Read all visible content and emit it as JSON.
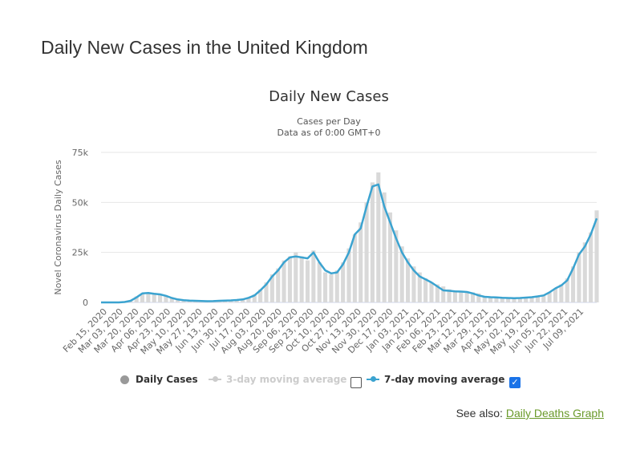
{
  "page": {
    "title": "Daily New Cases in the United Kingdom",
    "see_also_label": "See also:",
    "see_also_link": "Daily Deaths Graph"
  },
  "legend": {
    "daily_cases": "Daily Cases",
    "ma3": "3-day moving average",
    "ma7": "7-day moving average",
    "ma3_checked": false,
    "ma7_checked": true
  },
  "colors": {
    "bars": "#d9d9d9",
    "line": "#3ba3d0",
    "daily_dot": "#999999",
    "ma3_dot": "#cccccc"
  },
  "chart_data": {
    "type": "line",
    "title": "Daily New Cases",
    "subtitle": "Cases per Day",
    "subtitle2": "Data as of 0:00 GMT+0",
    "ylabel": "Novel Coronavirus Daily Cases",
    "xlabel": "",
    "ylim": [
      0,
      75000
    ],
    "yticks": [
      0,
      25000,
      50000,
      75000
    ],
    "ytick_labels": [
      "0",
      "25k",
      "50k",
      "75k"
    ],
    "x_tick_labels": [
      "Feb 15, 2020",
      "Mar 03, 2020",
      "Mar 20, 2020",
      "Apr 06, 2020",
      "Apr 23, 2020",
      "May 10, 2020",
      "May 27, 2020",
      "Jun 13, 2020",
      "Jun 30, 2020",
      "Jul 17, 2020",
      "Aug 03, 2020",
      "Aug 20, 2020",
      "Sep 06, 2020",
      "Sep 23, 2020",
      "Oct 10, 2020",
      "Oct 27, 2020",
      "Nov 13, 2020",
      "Nov 30, 2020",
      "Dec 17, 2020",
      "Jan 03, 2021",
      "Jan 20, 2021",
      "Feb 06, 2021",
      "Feb 23, 2021",
      "Mar 12, 2021",
      "Mar 29, 2021",
      "Apr 15, 2021",
      "May 02, 2021",
      "May 19, 2021",
      "Jun 05, 2021",
      "Jun 22, 2021",
      "Jul 09, 2021"
    ],
    "series": [
      {
        "name": "Daily Cases",
        "values": [
          0,
          0,
          0,
          0,
          200,
          1000,
          3000,
          4500,
          4800,
          4200,
          3800,
          3200,
          2000,
          1400,
          1100,
          1000,
          800,
          700,
          600,
          700,
          800,
          900,
          1000,
          1200,
          1500,
          2500,
          4000,
          6500,
          10000,
          14000,
          17000,
          21000,
          23000,
          25000,
          23000,
          21000,
          26000,
          20000,
          15000,
          14000,
          16000,
          20000,
          27000,
          34000,
          40000,
          50000,
          60000,
          65000,
          55000,
          45000,
          36000,
          28000,
          22000,
          18000,
          15000,
          12000,
          10000,
          9000,
          8000,
          6500,
          6000,
          5500,
          5500,
          5000,
          4500,
          3000,
          2800,
          2500,
          2300,
          2200,
          2000,
          2200,
          2500,
          2600,
          3000,
          3500,
          5000,
          7000,
          9000,
          12000,
          18000,
          25000,
          30000,
          35000,
          46000
        ]
      },
      {
        "name": "7-day moving average",
        "values": [
          0,
          0,
          0,
          0,
          200,
          800,
          2500,
          4500,
          4700,
          4300,
          4000,
          3300,
          2200,
          1500,
          1100,
          900,
          800,
          700,
          600,
          650,
          800,
          900,
          1000,
          1200,
          1500,
          2300,
          3500,
          6000,
          9000,
          13000,
          16000,
          20000,
          22500,
          23000,
          22500,
          22000,
          25000,
          20000,
          16000,
          14500,
          15000,
          19000,
          25000,
          34000,
          37000,
          48000,
          58000,
          59000,
          48000,
          40000,
          32000,
          25000,
          20000,
          16000,
          13000,
          11500,
          10000,
          8000,
          6000,
          5800,
          5500,
          5400,
          5200,
          4500,
          3500,
          2800,
          2600,
          2500,
          2300,
          2200,
          2100,
          2200,
          2400,
          2600,
          3000,
          3500,
          5000,
          7000,
          8500,
          11000,
          17000,
          24000,
          28000,
          34000,
          42000
        ]
      }
    ],
    "grid": true,
    "legend_position": "bottom"
  }
}
